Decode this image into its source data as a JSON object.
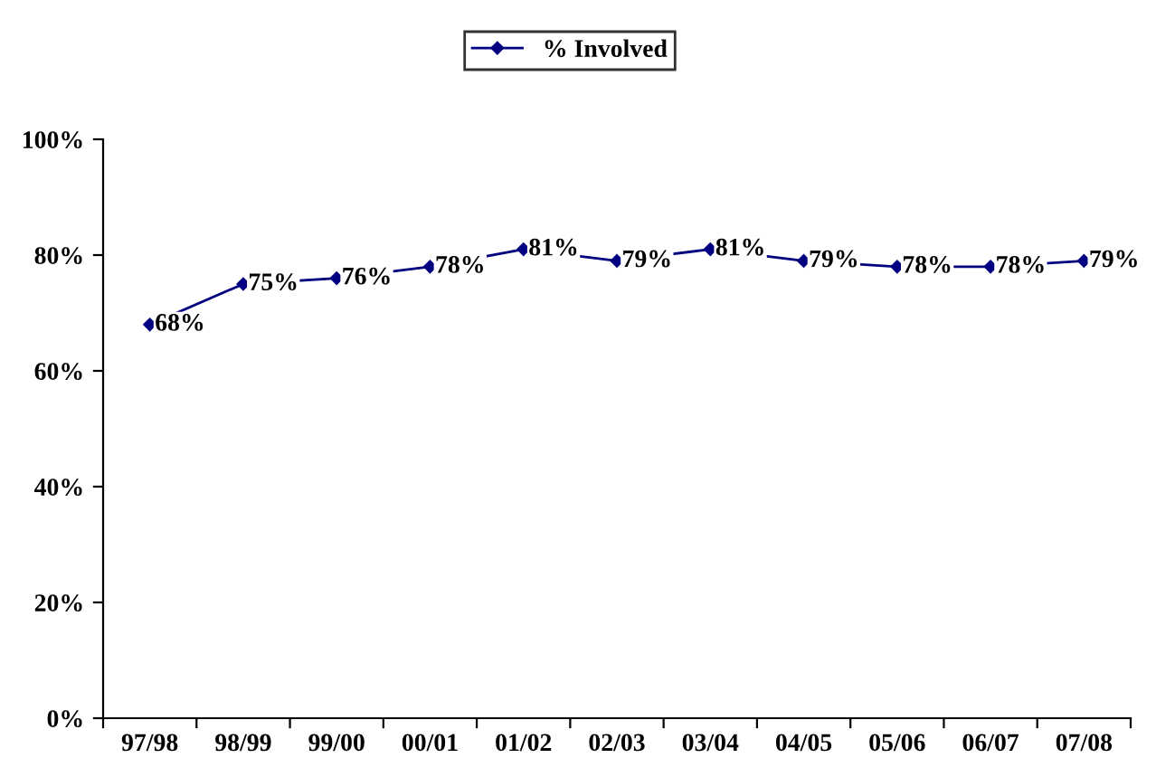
{
  "chart_data": {
    "type": "line",
    "categories": [
      "97/98",
      "98/99",
      "99/00",
      "00/01",
      "01/02",
      "02/03",
      "03/04",
      "04/05",
      "05/06",
      "06/07",
      "07/08"
    ],
    "series": [
      {
        "name": "% Involved",
        "color": "#000080",
        "values": [
          68,
          75,
          76,
          78,
          81,
          79,
          81,
          79,
          78,
          78,
          79
        ],
        "value_labels": [
          "68%",
          "75%",
          "76%",
          "78%",
          "81%",
          "79%",
          "81%",
          "79%",
          "78%",
          "78%",
          "79%"
        ]
      }
    ],
    "ylim": [
      0,
      100
    ],
    "yticks": [
      {
        "value": 0,
        "label": "0%"
      },
      {
        "value": 20,
        "label": "20%"
      },
      {
        "value": 40,
        "label": "40%"
      },
      {
        "value": 60,
        "label": "60%"
      },
      {
        "value": 80,
        "label": "80%"
      },
      {
        "value": 100,
        "label": "100%"
      }
    ],
    "grid": false,
    "legend": "top",
    "marker": "diamond",
    "line_style": "solid"
  }
}
